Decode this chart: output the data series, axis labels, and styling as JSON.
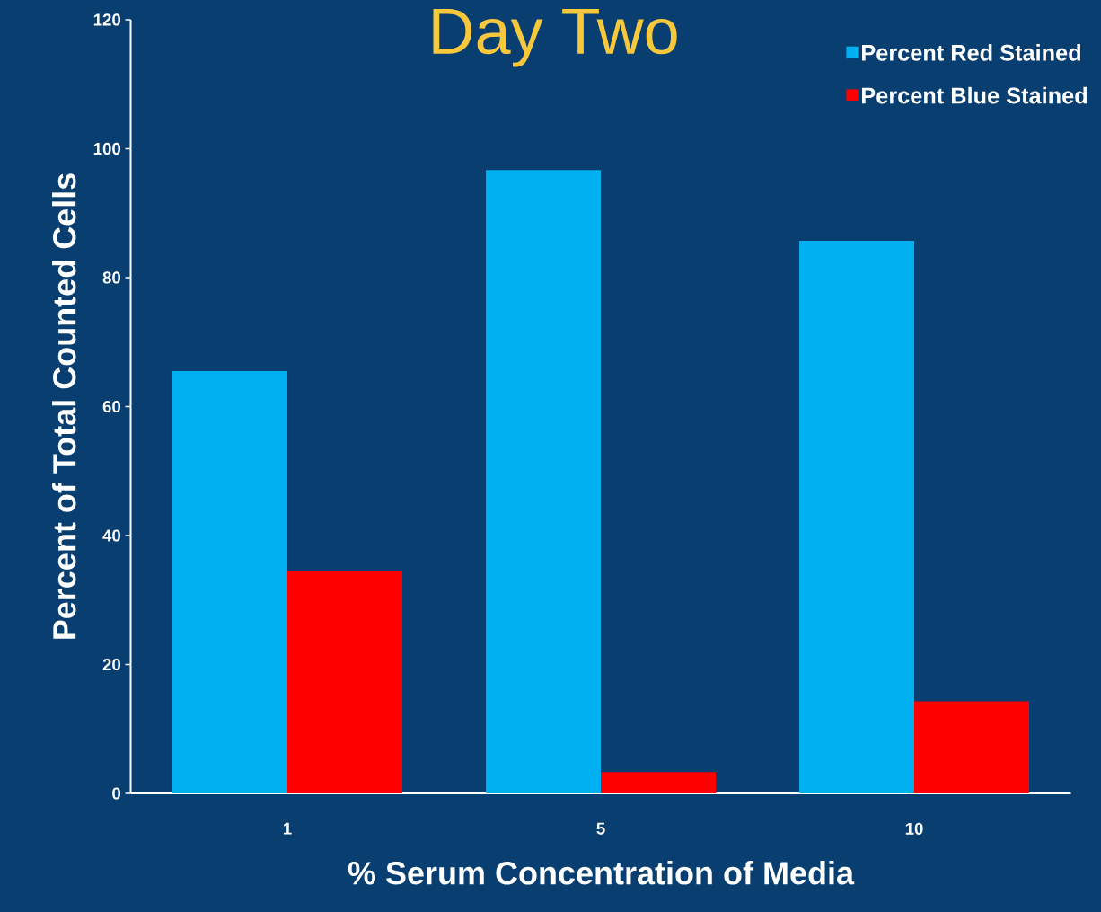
{
  "chart_data": {
    "type": "bar",
    "title": "Day Two",
    "xlabel": "% Serum Concentration of Media",
    "ylabel": "Percent of Total Counted Cells",
    "categories": [
      "1",
      "5",
      "10"
    ],
    "series": [
      {
        "name": "Percent Red Stained",
        "color": "#00b0f0",
        "values": [
          65.5,
          96.7,
          85.7
        ]
      },
      {
        "name": "Percent Blue Stained",
        "color": "#ff0000",
        "values": [
          34.5,
          3.3,
          14.3
        ]
      }
    ],
    "ylim": [
      0,
      120
    ],
    "yticks": [
      0,
      20,
      40,
      60,
      80,
      100,
      120
    ],
    "grid": false,
    "legend": "top right"
  }
}
